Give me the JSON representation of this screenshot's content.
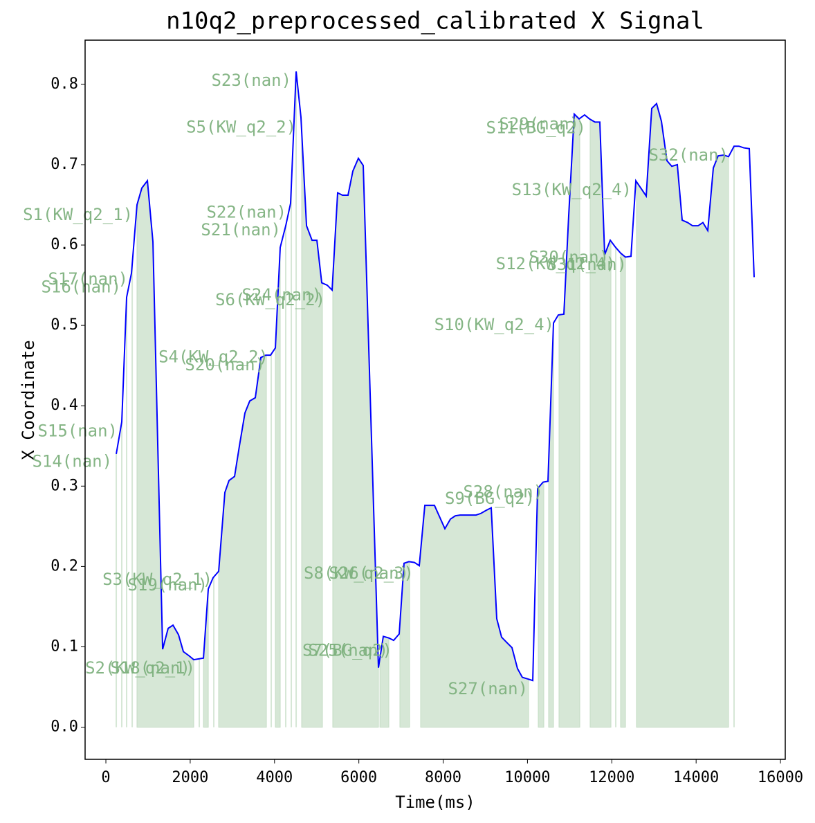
{
  "chart_data": {
    "type": "line",
    "title": "n10q2_preprocessed_calibrated X Signal",
    "xlabel": "Time(ms)",
    "ylabel": "X Coordinate",
    "xlim": [
      -493,
      16114
    ],
    "ylim": [
      -0.04,
      0.855
    ],
    "xticks": [
      0,
      2000,
      4000,
      6000,
      8000,
      10000,
      12000,
      14000,
      16000
    ],
    "yticks": [
      {
        "value": 0,
        "label": "0.0"
      },
      0.1,
      0.2,
      0.3,
      0.4,
      0.5,
      0.6,
      0.7,
      0.8
    ],
    "x": [
      246,
      377,
      492,
      607,
      738,
      853,
      985,
      1116,
      1346,
      1477,
      1592,
      1723,
      1838,
      1969,
      2084,
      2314,
      2429,
      2543,
      2675,
      2822,
      2921,
      3052,
      3167,
      3298,
      3413,
      3544,
      3676,
      3791,
      3906,
      4020,
      4135,
      4266,
      4381,
      4513,
      4627,
      4759,
      4890,
      5005,
      5120,
      5251,
      5366,
      5497,
      5612,
      5743,
      5858,
      5989,
      6104,
      6465,
      6580,
      6711,
      6826,
      6957,
      7072,
      7187,
      7318,
      7433,
      7565,
      7794,
      8041,
      8172,
      8287,
      8401,
      8533,
      8648,
      8779,
      8894,
      9025,
      9140,
      9271,
      9386,
      9517,
      9632,
      9763,
      9878,
      10010,
      10125,
      10240,
      10371,
      10486,
      10617,
      10732,
      10863,
      10978,
      11109,
      11224,
      11355,
      11470,
      11601,
      11716,
      11831,
      11963,
      12077,
      12209,
      12324,
      12455,
      12570,
      12701,
      12816,
      12947,
      13062,
      13177,
      13308,
      13423,
      13554,
      13669,
      13800,
      13915,
      14046,
      14161,
      14276,
      14408,
      14523,
      14654,
      14769,
      14900,
      15015,
      15130,
      15261,
      15376
    ],
    "series": [
      {
        "color": "#0000ff",
        "values": [
          0.34,
          0.38,
          0.535,
          0.565,
          0.65,
          0.671,
          0.68,
          0.604,
          0.097,
          0.123,
          0.127,
          0.115,
          0.094,
          0.089,
          0.084,
          0.086,
          0.172,
          0.186,
          0.194,
          0.292,
          0.307,
          0.312,
          0.35,
          0.391,
          0.406,
          0.41,
          0.46,
          0.463,
          0.463,
          0.472,
          0.597,
          0.624,
          0.652,
          0.816,
          0.759,
          0.624,
          0.606,
          0.606,
          0.553,
          0.55,
          0.544,
          0.665,
          0.662,
          0.662,
          0.692,
          0.708,
          0.699,
          0.074,
          0.113,
          0.111,
          0.108,
          0.116,
          0.204,
          0.206,
          0.205,
          0.201,
          0.276,
          0.276,
          0.247,
          0.259,
          0.263,
          0.264,
          0.264,
          0.264,
          0.264,
          0.266,
          0.27,
          0.273,
          0.135,
          0.112,
          0.105,
          0.099,
          0.073,
          0.062,
          0.06,
          0.058,
          0.297,
          0.305,
          0.306,
          0.503,
          0.513,
          0.514,
          0.637,
          0.763,
          0.757,
          0.762,
          0.757,
          0.753,
          0.753,
          0.588,
          0.606,
          0.598,
          0.59,
          0.585,
          0.586,
          0.68,
          0.67,
          0.661,
          0.77,
          0.776,
          0.754,
          0.705,
          0.698,
          0.7,
          0.631,
          0.628,
          0.624,
          0.624,
          0.628,
          0.618,
          0.696,
          0.711,
          0.712,
          0.71,
          0.723,
          0.723,
          0.721,
          0.72,
          0.56
        ]
      }
    ],
    "region_color": "#d6e7d6",
    "regions": [
      [
        246,
        246
      ],
      [
        377,
        377
      ],
      [
        492,
        492
      ],
      [
        624,
        624
      ],
      [
        738,
        2084
      ],
      [
        2215,
        2215
      ],
      [
        2314,
        2429
      ],
      [
        2560,
        2560
      ],
      [
        2675,
        3807
      ],
      [
        3922,
        3922
      ],
      [
        4020,
        4135
      ],
      [
        4266,
        4266
      ],
      [
        4398,
        4398
      ],
      [
        4513,
        4513
      ],
      [
        4644,
        5136
      ],
      [
        5382,
        6465
      ],
      [
        6500,
        6711
      ],
      [
        6974,
        7203
      ],
      [
        7466,
        10026
      ],
      [
        10256,
        10387
      ],
      [
        10502,
        10617
      ],
      [
        10748,
        11240
      ],
      [
        11486,
        11979
      ],
      [
        12094,
        12094
      ],
      [
        12209,
        12324
      ],
      [
        12586,
        14769
      ],
      [
        14900,
        14900
      ]
    ],
    "annotations": [
      {
        "text": "S1(KW_q2_1)",
        "x": 640,
        "y": 0.637
      },
      {
        "text": "S2(KW_q2_1)",
        "x": 2117,
        "y": 0.073
      },
      {
        "text": "S18(nan)",
        "x": 2000,
        "y": 0.073
      },
      {
        "text": "S3(KW_q2_1)",
        "x": 2527,
        "y": 0.183
      },
      {
        "text": "S19(nan)",
        "x": 2412,
        "y": 0.176
      },
      {
        "text": "S4(KW_q2_2)",
        "x": 3856,
        "y": 0.46
      },
      {
        "text": "S20(nan)",
        "x": 3774,
        "y": 0.45
      },
      {
        "text": "S5(KW_q2_2)",
        "x": 4513,
        "y": 0.746
      },
      {
        "text": "S21(nan)",
        "x": 4151,
        "y": 0.618
      },
      {
        "text": "S22(nan)",
        "x": 4283,
        "y": 0.64
      },
      {
        "text": "S23(nan)",
        "x": 4398,
        "y": 0.804
      },
      {
        "text": "S6(KW_q2_2)",
        "x": 5202,
        "y": 0.531
      },
      {
        "text": "S24(nan)",
        "x": 5120,
        "y": 0.537
      },
      {
        "text": "S7(BG_q2)",
        "x": 6793,
        "y": 0.095
      },
      {
        "text": "S25(nan)",
        "x": 6695,
        "y": 0.095
      },
      {
        "text": "S8(KW_q2_3)",
        "x": 7302,
        "y": 0.191
      },
      {
        "text": "S26(nan)",
        "x": 7187,
        "y": 0.191
      },
      {
        "text": "S27(nan)",
        "x": 10010,
        "y": 0.047
      },
      {
        "text": "S9(BG_q2)",
        "x": 10174,
        "y": 0.284
      },
      {
        "text": "S28(nan)",
        "x": 10371,
        "y": 0.292
      },
      {
        "text": "S10(KW_q2_4)",
        "x": 10633,
        "y": 0.5
      },
      {
        "text": "S11(BG_q2)",
        "x": 11388,
        "y": 0.745
      },
      {
        "text": "S29(nan)",
        "x": 11224,
        "y": 0.75
      },
      {
        "text": "S12(KW_q2_4)",
        "x": 12094,
        "y": 0.576
      },
      {
        "text": "S30(nan)",
        "x": 11930,
        "y": 0.584
      },
      {
        "text": "S31(nan)",
        "x": 12356,
        "y": 0.575
      },
      {
        "text": "S13(KW_q2_4)",
        "x": 12471,
        "y": 0.668
      },
      {
        "text": "S32(nan)",
        "x": 14769,
        "y": 0.711
      },
      {
        "text": "S14(nan)",
        "x": 148,
        "y": 0.33
      },
      {
        "text": "S15(nan)",
        "x": 279,
        "y": 0.368
      },
      {
        "text": "S16(nan)",
        "x": 361,
        "y": 0.547
      },
      {
        "text": "S17(nan)",
        "x": 525,
        "y": 0.557
      }
    ]
  }
}
